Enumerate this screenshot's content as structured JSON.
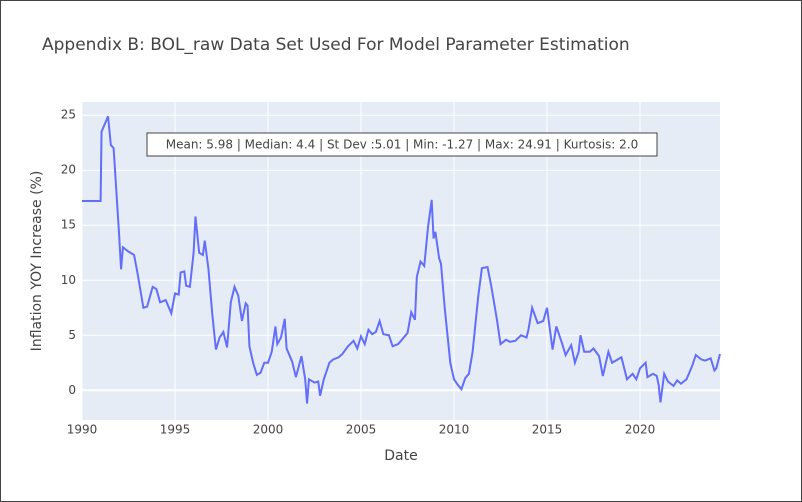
{
  "chart_data": {
    "type": "line",
    "title": "Appendix B: BOL_raw Data Set Used For Model Parameter Estimation",
    "annotation": "Mean: 5.98 | Median: 4.4 | St Dev :5.01 | Min: -1.27 | Max: 24.91 | Kurtosis: 2.0",
    "x_label": "Date",
    "y_label": "Inflation YOY Increase (%)",
    "xlim": [
      1990,
      2024.3
    ],
    "ylim": [
      -2.7,
      26.2
    ],
    "xticks": [
      1990,
      1995,
      2000,
      2005,
      2010,
      2015,
      2020
    ],
    "yticks": [
      0,
      5,
      10,
      15,
      20,
      25
    ],
    "grid": true,
    "series": [
      {
        "name": "BOL_raw",
        "color": "#636efa",
        "x": [
          1990,
          1991,
          1991.05,
          1991.4,
          1991.55,
          1991.7,
          1992,
          1992.1,
          1992.2,
          1992.5,
          1992.8,
          1993,
          1993.3,
          1993.5,
          1993.8,
          1994,
          1994.2,
          1994.5,
          1994.8,
          1995,
          1995.2,
          1995.3,
          1995.5,
          1995.6,
          1995.8,
          1996,
          1996.1,
          1996.3,
          1996.5,
          1996.6,
          1996.8,
          1997,
          1997.2,
          1997.4,
          1997.6,
          1997.8,
          1998,
          1998.2,
          1998.4,
          1998.6,
          1998.8,
          1998.9,
          1999,
          1999.2,
          1999.4,
          1999.6,
          1999.8,
          2000,
          2000.2,
          2000.4,
          2000.5,
          2000.7,
          2000.9,
          2001,
          2001.3,
          2001.5,
          2001.8,
          2002,
          2002.1,
          2002.2,
          2002.5,
          2002.7,
          2002.8,
          2003,
          2003.3,
          2003.5,
          2003.8,
          2004,
          2004.3,
          2004.6,
          2004.8,
          2005,
          2005.2,
          2005.4,
          2005.6,
          2005.8,
          2006,
          2006.2,
          2006.5,
          2006.7,
          2007,
          2007.2,
          2007.5,
          2007.7,
          2007.9,
          2008,
          2008.2,
          2008.4,
          2008.6,
          2008.8,
          2008.9,
          2009,
          2009.2,
          2009.3,
          2009.5,
          2009.8,
          2010,
          2010.2,
          2010.4,
          2010.6,
          2010.8,
          2011,
          2011.3,
          2011.5,
          2011.8,
          2012,
          2012.3,
          2012.5,
          2012.8,
          2013,
          2013.3,
          2013.6,
          2013.9,
          2014,
          2014.2,
          2014.5,
          2014.8,
          2015,
          2015.3,
          2015.5,
          2015.8,
          2016,
          2016.3,
          2016.5,
          2016.7,
          2016.8,
          2017,
          2017.3,
          2017.5,
          2017.8,
          2018,
          2018.3,
          2018.5,
          2018.8,
          2019,
          2019.3,
          2019.6,
          2019.8,
          2020,
          2020.3,
          2020.4,
          2020.7,
          2020.9,
          2021,
          2021.1,
          2021.3,
          2021.5,
          2021.8,
          2022,
          2022.2,
          2022.5,
          2022.8,
          2023,
          2023.3,
          2023.5,
          2023.8,
          2024,
          2024.1,
          2024.3
        ],
        "values": [
          17.2,
          17.2,
          23.5,
          24.9,
          22.3,
          22,
          14,
          11,
          13,
          12.6,
          12.3,
          10.5,
          7.5,
          7.6,
          9.4,
          9.2,
          8,
          8.2,
          7,
          8.8,
          8.7,
          10.7,
          10.8,
          9.5,
          9.4,
          12.5,
          15.8,
          12.5,
          12.3,
          13.6,
          11,
          7,
          3.7,
          4.8,
          5.3,
          3.9,
          8,
          9.4,
          8.6,
          6.3,
          7.9,
          7.7,
          4,
          2.5,
          1.4,
          1.6,
          2.5,
          2.5,
          3.5,
          5.8,
          4.2,
          4.8,
          6.5,
          3.8,
          2.6,
          1.2,
          3.1,
          1,
          -1.2,
          1,
          0.7,
          0.8,
          -0.5,
          1,
          2.5,
          2.8,
          3,
          3.3,
          4,
          4.5,
          3.8,
          4.9,
          4.2,
          5.5,
          5.1,
          5.3,
          6.3,
          5.1,
          5,
          4,
          4.2,
          4.6,
          5.2,
          7.1,
          6.4,
          10.3,
          11.7,
          11.3,
          14.8,
          17.3,
          13.8,
          14.4,
          12,
          11.5,
          7.5,
          2.5,
          1,
          0.5,
          0.1,
          1.1,
          1.5,
          3.5,
          8.5,
          11.1,
          11.2,
          9.5,
          6.5,
          4.2,
          4.6,
          4.4,
          4.5,
          5,
          4.8,
          5.5,
          7.5,
          6.1,
          6.3,
          7.5,
          3.7,
          5.8,
          4.3,
          3.2,
          4.1,
          2.5,
          3.5,
          5,
          3.5,
          3.5,
          3.8,
          3.1,
          1.3,
          3.5,
          2.5,
          2.8,
          3,
          1,
          1.5,
          1,
          2,
          2.5,
          1.2,
          1.5,
          1.3,
          0.5,
          -1.1,
          1.5,
          0.8,
          0.4,
          0.9,
          0.6,
          1,
          2.2,
          3.2,
          2.8,
          2.7,
          2.9,
          1.8,
          2,
          3.3
        ]
      }
    ]
  }
}
